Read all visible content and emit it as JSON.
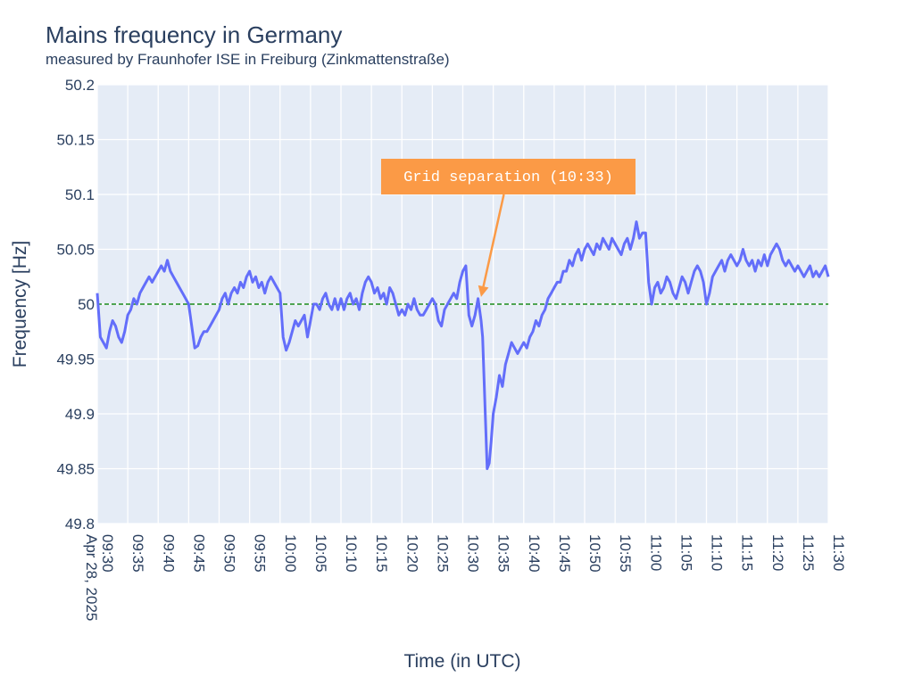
{
  "chart_data": {
    "type": "line",
    "title": "Mains frequency in Germany",
    "subtitle": "measured by Fraunhofer ISE in Freiburg (Zinkmattenstraße)",
    "xlabel": "Time (in UTC)",
    "ylabel": "Frequency [Hz]",
    "ylim": [
      49.8,
      50.2
    ],
    "xlim": [
      "2025-04-28 09:30",
      "2025-04-28 11:30"
    ],
    "grid": true,
    "y_ticks": [
      "49.8",
      "49.85",
      "49.9",
      "49.95",
      "50",
      "50.05",
      "50.1",
      "50.15",
      "50.2"
    ],
    "x_ticks": [
      {
        "time": "09:30",
        "label": "09:30",
        "date_label": "Apr 28, 2025"
      },
      {
        "time": "09:35",
        "label": "09:35"
      },
      {
        "time": "09:40",
        "label": "09:40"
      },
      {
        "time": "09:45",
        "label": "09:45"
      },
      {
        "time": "09:50",
        "label": "09:50"
      },
      {
        "time": "09:55",
        "label": "09:55"
      },
      {
        "time": "10:00",
        "label": "10:00"
      },
      {
        "time": "10:05",
        "label": "10:05"
      },
      {
        "time": "10:10",
        "label": "10:10"
      },
      {
        "time": "10:15",
        "label": "10:15"
      },
      {
        "time": "10:20",
        "label": "10:20"
      },
      {
        "time": "10:25",
        "label": "10:25"
      },
      {
        "time": "10:30",
        "label": "10:30"
      },
      {
        "time": "10:35",
        "label": "10:35"
      },
      {
        "time": "10:40",
        "label": "10:40"
      },
      {
        "time": "10:45",
        "label": "10:45"
      },
      {
        "time": "10:50",
        "label": "10:50"
      },
      {
        "time": "10:55",
        "label": "10:55"
      },
      {
        "time": "11:00",
        "label": "11:00"
      },
      {
        "time": "11:05",
        "label": "11:05"
      },
      {
        "time": "11:10",
        "label": "11:10"
      },
      {
        "time": "11:15",
        "label": "11:15"
      },
      {
        "time": "11:20",
        "label": "11:20"
      },
      {
        "time": "11:25",
        "label": "11:25"
      },
      {
        "time": "11:30",
        "label": "11:30"
      }
    ],
    "reference_line": {
      "y": 50.0,
      "color": "#1a8a1a",
      "style": "dashed"
    },
    "series": [
      {
        "color": "#636efa",
        "points": [
          [
            "09:30",
            50.01
          ],
          [
            "09:30:30",
            49.97
          ],
          [
            "09:31",
            49.965
          ],
          [
            "09:31:30",
            49.96
          ],
          [
            "09:32",
            49.975
          ],
          [
            "09:32:30",
            49.985
          ],
          [
            "09:33",
            49.98
          ],
          [
            "09:33:30",
            49.97
          ],
          [
            "09:34",
            49.965
          ],
          [
            "09:34:30",
            49.975
          ],
          [
            "09:35",
            49.99
          ],
          [
            "09:35:30",
            49.995
          ],
          [
            "09:36",
            50.005
          ],
          [
            "09:36:30",
            50.0
          ],
          [
            "09:37",
            50.01
          ],
          [
            "09:37:30",
            50.015
          ],
          [
            "09:38",
            50.02
          ],
          [
            "09:38:30",
            50.025
          ],
          [
            "09:39",
            50.02
          ],
          [
            "09:39:30",
            50.025
          ],
          [
            "09:40",
            50.03
          ],
          [
            "09:40:30",
            50.035
          ],
          [
            "09:41",
            50.03
          ],
          [
            "09:41:30",
            50.04
          ],
          [
            "09:42",
            50.03
          ],
          [
            "09:42:30",
            50.025
          ],
          [
            "09:43",
            50.02
          ],
          [
            "09:43:30",
            50.015
          ],
          [
            "09:44",
            50.01
          ],
          [
            "09:44:30",
            50.005
          ],
          [
            "09:45",
            50.0
          ],
          [
            "09:45:30",
            49.98
          ],
          [
            "09:46",
            49.96
          ],
          [
            "09:46:30",
            49.962
          ],
          [
            "09:47",
            49.97
          ],
          [
            "09:47:30",
            49.975
          ],
          [
            "09:48",
            49.975
          ],
          [
            "09:48:30",
            49.98
          ],
          [
            "09:49",
            49.985
          ],
          [
            "09:49:30",
            49.99
          ],
          [
            "09:50",
            49.995
          ],
          [
            "09:50:30",
            50.005
          ],
          [
            "09:51",
            50.01
          ],
          [
            "09:51:30",
            50.0
          ],
          [
            "09:52",
            50.01
          ],
          [
            "09:52:30",
            50.015
          ],
          [
            "09:53",
            50.01
          ],
          [
            "09:53:30",
            50.02
          ],
          [
            "09:54",
            50.015
          ],
          [
            "09:54:30",
            50.025
          ],
          [
            "09:55",
            50.03
          ],
          [
            "09:55:30",
            50.02
          ],
          [
            "09:56",
            50.025
          ],
          [
            "09:56:30",
            50.015
          ],
          [
            "09:57",
            50.02
          ],
          [
            "09:57:30",
            50.01
          ],
          [
            "09:58",
            50.02
          ],
          [
            "09:58:30",
            50.025
          ],
          [
            "09:59",
            50.02
          ],
          [
            "09:59:30",
            50.015
          ],
          [
            "10:00",
            50.01
          ],
          [
            "10:00:30",
            49.97
          ],
          [
            "10:01",
            49.958
          ],
          [
            "10:01:30",
            49.965
          ],
          [
            "10:02",
            49.975
          ],
          [
            "10:02:30",
            49.985
          ],
          [
            "10:03",
            49.98
          ],
          [
            "10:03:30",
            49.985
          ],
          [
            "10:04",
            49.99
          ],
          [
            "10:04:30",
            49.97
          ],
          [
            "10:05",
            49.985
          ],
          [
            "10:05:30",
            50.0
          ],
          [
            "10:06",
            50.0
          ],
          [
            "10:06:30",
            49.995
          ],
          [
            "10:07",
            50.005
          ],
          [
            "10:07:30",
            50.01
          ],
          [
            "10:08",
            50.0
          ],
          [
            "10:08:30",
            49.995
          ],
          [
            "10:09",
            50.005
          ],
          [
            "10:09:30",
            49.995
          ],
          [
            "10:10",
            50.005
          ],
          [
            "10:10:30",
            49.995
          ],
          [
            "10:11",
            50.005
          ],
          [
            "10:11:30",
            50.01
          ],
          [
            "10:12",
            50.0
          ],
          [
            "10:12:30",
            50.005
          ],
          [
            "10:13",
            49.995
          ],
          [
            "10:13:30",
            50.01
          ],
          [
            "10:14",
            50.02
          ],
          [
            "10:14:30",
            50.025
          ],
          [
            "10:15",
            50.02
          ],
          [
            "10:15:30",
            50.01
          ],
          [
            "10:16",
            50.015
          ],
          [
            "10:16:30",
            50.005
          ],
          [
            "10:17",
            50.01
          ],
          [
            "10:17:30",
            50.0
          ],
          [
            "10:18",
            50.015
          ],
          [
            "10:18:30",
            50.01
          ],
          [
            "10:19",
            50.0
          ],
          [
            "10:19:30",
            49.99
          ],
          [
            "10:20",
            49.995
          ],
          [
            "10:20:30",
            49.99
          ],
          [
            "10:21",
            50.0
          ],
          [
            "10:21:30",
            49.995
          ],
          [
            "10:22",
            50.005
          ],
          [
            "10:22:30",
            49.995
          ],
          [
            "10:23",
            49.99
          ],
          [
            "10:23:30",
            49.99
          ],
          [
            "10:24",
            49.995
          ],
          [
            "10:24:30",
            50.0
          ],
          [
            "10:25",
            50.005
          ],
          [
            "10:25:30",
            50.0
          ],
          [
            "10:26",
            49.985
          ],
          [
            "10:26:30",
            49.98
          ],
          [
            "10:27",
            49.995
          ],
          [
            "10:27:30",
            50.0
          ],
          [
            "10:28",
            50.005
          ],
          [
            "10:28:30",
            50.01
          ],
          [
            "10:29",
            50.005
          ],
          [
            "10:29:30",
            50.02
          ],
          [
            "10:30",
            50.03
          ],
          [
            "10:30:30",
            50.035
          ],
          [
            "10:31",
            49.99
          ],
          [
            "10:31:30",
            49.98
          ],
          [
            "10:32",
            49.99
          ],
          [
            "10:32:30",
            50.005
          ],
          [
            "10:33",
            49.985
          ],
          [
            "10:33:15",
            49.97
          ],
          [
            "10:33:30",
            49.93
          ],
          [
            "10:33:45",
            49.89
          ],
          [
            "10:34",
            49.85
          ],
          [
            "10:34:20",
            49.855
          ],
          [
            "10:34:40",
            49.875
          ],
          [
            "10:35",
            49.9
          ],
          [
            "10:35:30",
            49.915
          ],
          [
            "10:36",
            49.935
          ],
          [
            "10:36:30",
            49.925
          ],
          [
            "10:37",
            49.945
          ],
          [
            "10:37:30",
            49.955
          ],
          [
            "10:38",
            49.965
          ],
          [
            "10:38:30",
            49.96
          ],
          [
            "10:39",
            49.955
          ],
          [
            "10:39:30",
            49.96
          ],
          [
            "10:40",
            49.965
          ],
          [
            "10:40:30",
            49.96
          ],
          [
            "10:41",
            49.97
          ],
          [
            "10:41:30",
            49.975
          ],
          [
            "10:42",
            49.985
          ],
          [
            "10:42:30",
            49.98
          ],
          [
            "10:43",
            49.99
          ],
          [
            "10:43:30",
            49.995
          ],
          [
            "10:44",
            50.005
          ],
          [
            "10:44:30",
            50.01
          ],
          [
            "10:45",
            50.015
          ],
          [
            "10:45:30",
            50.02
          ],
          [
            "10:46",
            50.02
          ],
          [
            "10:46:30",
            50.03
          ],
          [
            "10:47",
            50.03
          ],
          [
            "10:47:30",
            50.04
          ],
          [
            "10:48",
            50.035
          ],
          [
            "10:48:30",
            50.045
          ],
          [
            "10:49",
            50.05
          ],
          [
            "10:49:30",
            50.04
          ],
          [
            "10:50",
            50.05
          ],
          [
            "10:50:30",
            50.055
          ],
          [
            "10:51",
            50.05
          ],
          [
            "10:51:30",
            50.045
          ],
          [
            "10:52",
            50.055
          ],
          [
            "10:52:30",
            50.05
          ],
          [
            "10:53",
            50.06
          ],
          [
            "10:53:30",
            50.055
          ],
          [
            "10:54",
            50.05
          ],
          [
            "10:54:30",
            50.06
          ],
          [
            "10:55",
            50.055
          ],
          [
            "10:55:30",
            50.05
          ],
          [
            "10:56",
            50.045
          ],
          [
            "10:56:30",
            50.055
          ],
          [
            "10:57",
            50.06
          ],
          [
            "10:57:30",
            50.05
          ],
          [
            "10:58",
            50.06
          ],
          [
            "10:58:30",
            50.075
          ],
          [
            "10:59",
            50.06
          ],
          [
            "10:59:30",
            50.065
          ],
          [
            "11:00",
            50.065
          ],
          [
            "11:00:30",
            50.02
          ],
          [
            "11:01",
            50.0
          ],
          [
            "11:01:30",
            50.015
          ],
          [
            "11:02",
            50.02
          ],
          [
            "11:02:30",
            50.01
          ],
          [
            "11:03",
            50.015
          ],
          [
            "11:03:30",
            50.025
          ],
          [
            "11:04",
            50.02
          ],
          [
            "11:04:30",
            50.01
          ],
          [
            "11:05",
            50.005
          ],
          [
            "11:05:30",
            50.015
          ],
          [
            "11:06",
            50.025
          ],
          [
            "11:06:30",
            50.02
          ],
          [
            "11:07",
            50.01
          ],
          [
            "11:07:30",
            50.02
          ],
          [
            "11:08",
            50.03
          ],
          [
            "11:08:30",
            50.035
          ],
          [
            "11:09",
            50.03
          ],
          [
            "11:09:30",
            50.02
          ],
          [
            "11:10",
            50.0
          ],
          [
            "11:10:30",
            50.01
          ],
          [
            "11:11",
            50.025
          ],
          [
            "11:11:30",
            50.03
          ],
          [
            "11:12",
            50.035
          ],
          [
            "11:12:30",
            50.04
          ],
          [
            "11:13",
            50.03
          ],
          [
            "11:13:30",
            50.04
          ],
          [
            "11:14",
            50.045
          ],
          [
            "11:14:30",
            50.04
          ],
          [
            "11:15",
            50.035
          ],
          [
            "11:15:30",
            50.04
          ],
          [
            "11:16",
            50.05
          ],
          [
            "11:16:30",
            50.04
          ],
          [
            "11:17",
            50.035
          ],
          [
            "11:17:30",
            50.04
          ],
          [
            "11:18",
            50.03
          ],
          [
            "11:18:30",
            50.04
          ],
          [
            "11:19",
            50.035
          ],
          [
            "11:19:30",
            50.045
          ],
          [
            "11:20",
            50.035
          ],
          [
            "11:20:30",
            50.045
          ],
          [
            "11:21",
            50.05
          ],
          [
            "11:21:30",
            50.055
          ],
          [
            "11:22",
            50.05
          ],
          [
            "11:22:30",
            50.04
          ],
          [
            "11:23",
            50.035
          ],
          [
            "11:23:30",
            50.04
          ],
          [
            "11:24",
            50.035
          ],
          [
            "11:24:30",
            50.03
          ],
          [
            "11:25",
            50.035
          ],
          [
            "11:25:30",
            50.03
          ],
          [
            "11:26",
            50.025
          ],
          [
            "11:26:30",
            50.03
          ],
          [
            "11:27",
            50.035
          ],
          [
            "11:27:30",
            50.025
          ],
          [
            "11:28",
            50.03
          ],
          [
            "11:28:30",
            50.025
          ],
          [
            "11:29",
            50.03
          ],
          [
            "11:29:30",
            50.035
          ],
          [
            "11:30",
            50.025
          ]
        ]
      }
    ],
    "annotation": {
      "text": "Grid separation (10:33)",
      "x": "10:33",
      "y": 50.005,
      "background": "#fb9a46",
      "text_color": "#ffffff"
    },
    "colors": {
      "plot_background": "#e5ecf6",
      "grid": "#ffffff",
      "text": "#2a3f5f"
    }
  }
}
